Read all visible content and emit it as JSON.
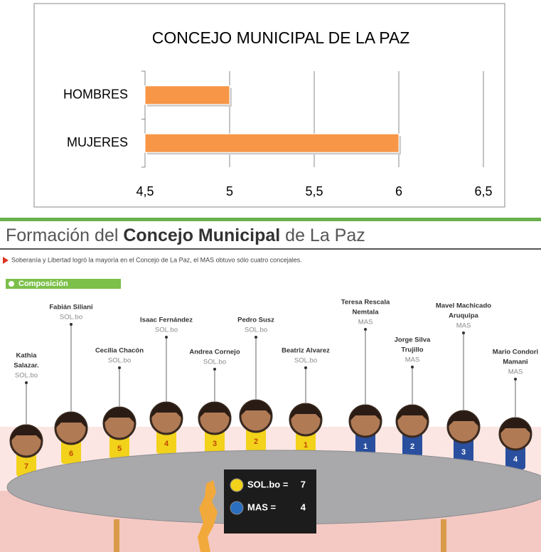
{
  "chart_data": {
    "type": "bar",
    "orientation": "horizontal",
    "title": "CONCEJO MUNICIPAL DE LA PAZ",
    "categories": [
      "HOMBRES",
      "MUJERES"
    ],
    "values": [
      5,
      6
    ],
    "color": "#f79646",
    "xlim": [
      4.5,
      6.5
    ],
    "xticks": [
      {
        "value": 4.5,
        "label": "4,5"
      },
      5,
      {
        "value": 5.5,
        "label": "5,5"
      },
      6,
      {
        "value": 6.5,
        "label": "6,5"
      }
    ],
    "grid": true
  },
  "infographic": {
    "title_parts": [
      "Formación del ",
      "Concejo Municipal",
      " de La Paz"
    ],
    "subtitle": "Soberanía y Libertad logró la mayoría en el Concejo de La Paz, el MAS obtuvo sólo cuatro concejales.",
    "section": "Composición",
    "members": [
      {
        "name_lines": [
          "Kathia",
          "Salazar."
        ],
        "party": "SOL.bo",
        "number": "7",
        "color": "#f2d21b"
      },
      {
        "name_lines": [
          "Fabián Siliani"
        ],
        "party": "SOL.bo",
        "number": "6",
        "color": "#f2d21b"
      },
      {
        "name_lines": [
          "Cecilia Chacón"
        ],
        "party": "SOL.bo",
        "number": "5",
        "color": "#f2d21b"
      },
      {
        "name_lines": [
          "Isaac Fernández"
        ],
        "party": "SOL.bo",
        "number": "4",
        "color": "#f2d21b"
      },
      {
        "name_lines": [
          "Andrea Cornejo"
        ],
        "party": "SOL.bo",
        "number": "3",
        "color": "#f2d21b"
      },
      {
        "name_lines": [
          "Pedro Susz"
        ],
        "party": "SOL.bo",
        "number": "2",
        "color": "#f2d21b"
      },
      {
        "name_lines": [
          "Beatriz Alvarez"
        ],
        "party": "SOL.bo",
        "number": "1",
        "color": "#f2d21b"
      },
      {
        "name_lines": [
          "Teresa Rescala",
          "Nemtala"
        ],
        "party": "MAS",
        "number": "1",
        "color": "#2a4f9e"
      },
      {
        "name_lines": [
          "Jorge Silva",
          "Trujillo"
        ],
        "party": "MAS",
        "number": "2",
        "color": "#2a4f9e"
      },
      {
        "name_lines": [
          "Mavel Machicado",
          "Aruquipa"
        ],
        "party": "MAS",
        "number": "3",
        "color": "#2a4f9e"
      },
      {
        "name_lines": [
          "Mario Condori",
          "Mamani"
        ],
        "party": "MAS",
        "number": "4",
        "color": "#2a4f9e"
      }
    ],
    "legend": [
      {
        "label": "SOL.bo =",
        "count": 7,
        "color": "#f2d21b"
      },
      {
        "label": "MAS =",
        "count": 4,
        "color": "#2a6fc0"
      }
    ]
  }
}
